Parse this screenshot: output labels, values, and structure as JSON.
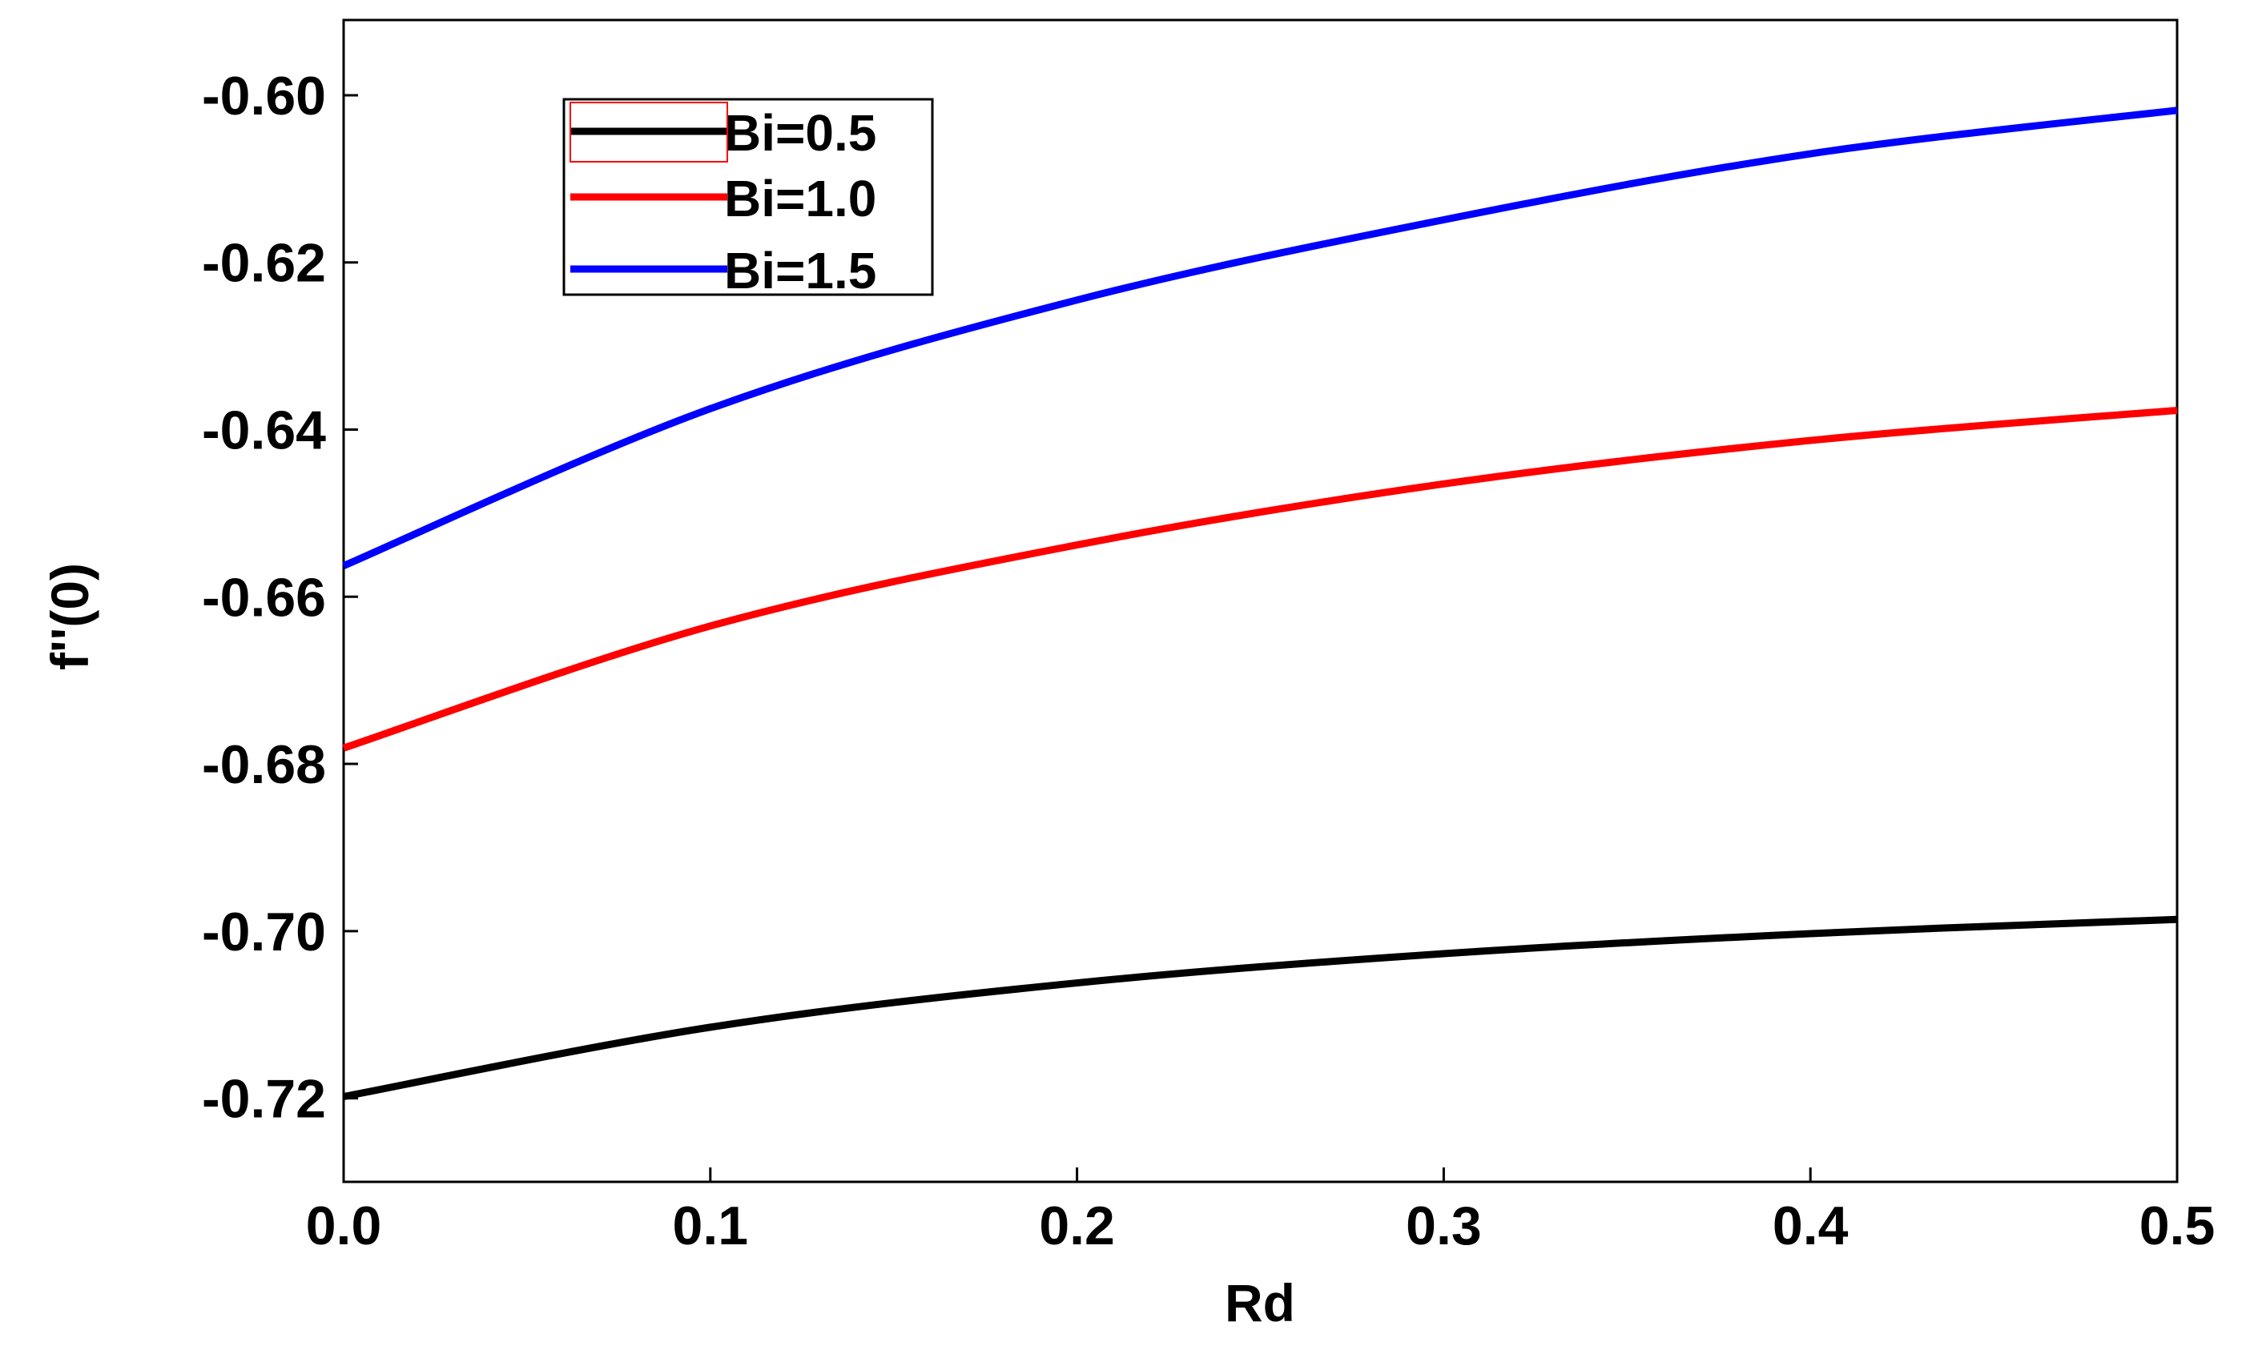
{
  "chart_data": {
    "type": "line",
    "title": "",
    "xlabel": "Rd",
    "ylabel": "f''(0)",
    "xlim": [
      0.0,
      0.5
    ],
    "ylim": [
      -0.73,
      -0.591
    ],
    "grid": false,
    "legend_position": "top-left",
    "x": [
      0.0,
      0.1,
      0.2,
      0.3,
      0.4,
      0.5
    ],
    "x_tick_labels": [
      "0.0",
      "0.1",
      "0.2",
      "0.3",
      "0.4",
      "0.5"
    ],
    "y_ticks": [
      -0.72,
      -0.7,
      -0.68,
      -0.66,
      -0.64,
      -0.62,
      -0.6
    ],
    "y_tick_labels": [
      "-0.72",
      "-0.70",
      "-0.68",
      "-0.66",
      "-0.64",
      "-0.62",
      "-0.60"
    ],
    "series": [
      {
        "name": "Bi=0.5",
        "color": "#000000",
        "values": [
          -0.7198,
          -0.7115,
          -0.7062,
          -0.7027,
          -0.7003,
          -0.6986
        ]
      },
      {
        "name": "Bi=1.0",
        "color": "#ff0000",
        "values": [
          -0.6781,
          -0.6635,
          -0.6538,
          -0.6465,
          -0.6413,
          -0.6377
        ]
      },
      {
        "name": "Bi=1.5",
        "color": "#0000ff",
        "values": [
          -0.6563,
          -0.6375,
          -0.6245,
          -0.6149,
          -0.607,
          -0.6018
        ]
      }
    ]
  }
}
